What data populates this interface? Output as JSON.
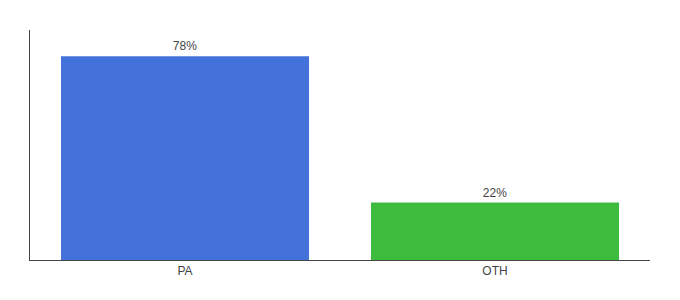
{
  "chart_data": {
    "type": "bar",
    "categories": [
      "PA",
      "OTH"
    ],
    "values": [
      78,
      22
    ],
    "value_labels": [
      "78%",
      "22%"
    ],
    "data_labels": true,
    "colors": [
      "#4472db",
      "#3dbb3d"
    ],
    "ylim": [
      0,
      88
    ],
    "tick_labels": "x",
    "grid": false
  }
}
